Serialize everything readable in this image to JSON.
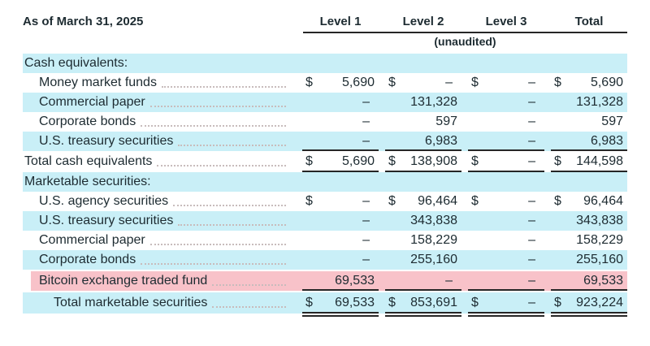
{
  "table": {
    "title": "As of March 31, 2025",
    "columns": [
      "Level 1",
      "Level 2",
      "Level 3",
      "Total"
    ],
    "subheader": "(unaudited)",
    "currency": "$",
    "dash": "–",
    "rows": [
      {
        "label": "Cash equivalents:",
        "type": "section",
        "indent": 0,
        "bg": "cyan"
      },
      {
        "label": "Money market funds",
        "type": "item",
        "indent": 1,
        "bg": "white",
        "dollar": true,
        "values": [
          "5,690",
          "–",
          "–",
          "5,690"
        ]
      },
      {
        "label": "Commercial paper",
        "type": "item",
        "indent": 1,
        "bg": "cyan",
        "dollar": false,
        "values": [
          "–",
          "131,328",
          "–",
          "131,328"
        ]
      },
      {
        "label": "Corporate bonds",
        "type": "item",
        "indent": 1,
        "bg": "white",
        "dollar": false,
        "values": [
          "–",
          "597",
          "–",
          "597"
        ]
      },
      {
        "label": "U.S. treasury securities",
        "type": "item",
        "indent": 1,
        "bg": "cyan",
        "dollar": false,
        "values": [
          "–",
          "6,983",
          "–",
          "6,983"
        ],
        "rule": "under"
      },
      {
        "label": "Total cash equivalents",
        "type": "total",
        "indent": 0,
        "bg": "white",
        "dollar": true,
        "values": [
          "5,690",
          "138,908",
          "–",
          "144,598"
        ],
        "rule": "double"
      },
      {
        "label": "Marketable securities:",
        "type": "section",
        "indent": 0,
        "bg": "cyan"
      },
      {
        "label": "U.S. agency securities",
        "type": "item",
        "indent": 1,
        "bg": "white",
        "dollar": true,
        "values": [
          "–",
          "96,464",
          "–",
          "96,464"
        ]
      },
      {
        "label": "U.S. treasury securities",
        "type": "item",
        "indent": 1,
        "bg": "cyan",
        "dollar": false,
        "values": [
          "–",
          "343,838",
          "–",
          "343,838"
        ]
      },
      {
        "label": "Commercial paper",
        "type": "item",
        "indent": 1,
        "bg": "white",
        "dollar": false,
        "values": [
          "–",
          "158,229",
          "–",
          "158,229"
        ]
      },
      {
        "label": "Corporate bonds",
        "type": "item",
        "indent": 1,
        "bg": "cyan",
        "dollar": false,
        "values": [
          "–",
          "255,160",
          "–",
          "255,160"
        ]
      },
      {
        "label": "Bitcoin exchange traded fund",
        "type": "item",
        "indent": 1,
        "bg": "pink",
        "dollar": false,
        "values": [
          "69,533",
          "–",
          "–",
          "69,533"
        ],
        "rule": "under"
      },
      {
        "label": "Total marketable securities",
        "type": "total",
        "indent": 2,
        "bg": "cyan",
        "dollar": true,
        "values": [
          "69,533",
          "853,691",
          "–",
          "923,224"
        ],
        "rule": "double"
      }
    ]
  },
  "colors": {
    "row_highlight_cyan": "#c9eff7",
    "bitcoin_highlight_pink": "#f8c2c9",
    "rule_line": "#262626",
    "text": "#1d2b31",
    "leader_dots": "#c8bcbc"
  }
}
